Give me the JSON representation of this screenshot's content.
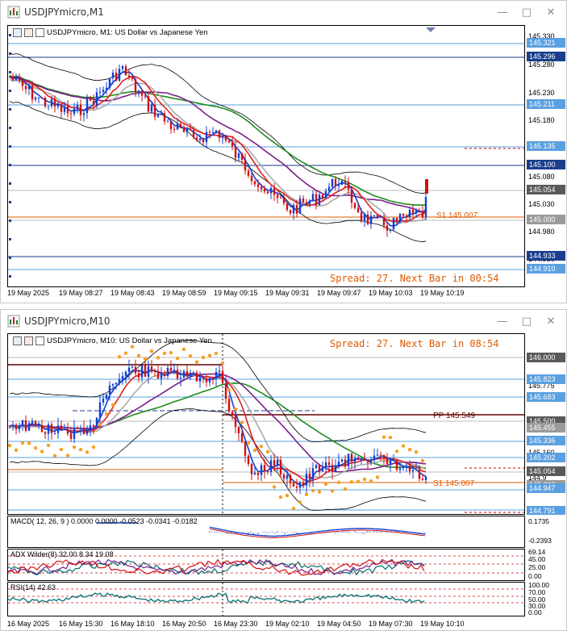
{
  "window1": {
    "title": "USDJPYmicro,M1",
    "chart_label": "USDJPYmicro, M1:  US Dollar vs Japanese Yen",
    "spread_text": "Spread: 27. Next Bar in 00:54",
    "s1_label": "S1 145.007",
    "price_ticks": [
      "145.330",
      "145.280",
      "145.230",
      "145.180",
      "145.130",
      "145.080",
      "145.030",
      "144.980",
      "144.930"
    ],
    "price_boxes": [
      {
        "text": "145.321",
        "color": "#5aa0e0"
      },
      {
        "text": "145.296",
        "color": "#1a3e8c"
      },
      {
        "text": "145.211",
        "color": "#5aa0e0"
      },
      {
        "text": "145.135",
        "color": "#5aa0e0"
      },
      {
        "text": "145.100",
        "color": "#1a3e8c"
      },
      {
        "text": "145.054",
        "color": "#5a5a5a"
      },
      {
        "text": "145.000",
        "color": "#9a9a9a"
      },
      {
        "text": "144.933",
        "color": "#1a3e8c"
      },
      {
        "text": "144.910",
        "color": "#5aa0e0"
      }
    ],
    "time_labels": [
      "19 May 2025",
      "19 May 08:27",
      "19 May 08:43",
      "19 May 08:59",
      "19 May 09:15",
      "19 May 09:31",
      "19 May 09:47",
      "19 May 10:03",
      "19 May 10:19"
    ]
  },
  "window2": {
    "title": "USDJPYmicro,M10",
    "chart_label": "USDJPYmicro, M10:  US Dollar vs Japanese Yen",
    "spread_text": "Spread: 27. Next Bar in 08:54",
    "pp_label": "PP 145.549",
    "s1_label": "S1 145.007",
    "price_boxes": [
      {
        "text": "146.000",
        "color": "#5a5a5a"
      },
      {
        "text": "145.823",
        "color": "#5aa0e0"
      },
      {
        "text": "145.683",
        "color": "#5aa0e0"
      },
      {
        "text": "145.500",
        "color": "#5a5a5a"
      },
      {
        "text": "145.455",
        "color": "#9a9a9a"
      },
      {
        "text": "145.336",
        "color": "#5aa0e0"
      },
      {
        "text": "145.202",
        "color": "#5aa0e0"
      },
      {
        "text": "145.054",
        "color": "#5a5a5a"
      },
      {
        "text": "145.000",
        "color": "#9a9a9a"
      },
      {
        "text": "144.947",
        "color": "#5aa0e0"
      },
      {
        "text": "144.791",
        "color": "#5aa0e0"
      }
    ],
    "price_ticks": [
      "145.775",
      "145.160",
      "144.9"
    ],
    "macd_label": "MACD( 12, 26, 9 ) 0.0000  0.0000  -0.0523  -0.0341  -0.0182",
    "macd_ticks": [
      "0.1735",
      "-0.2393"
    ],
    "adx_label": "ADX Wilder(8) 32.00  8.34  19.08",
    "adx_ticks": [
      "69.14",
      "45.00",
      "25.00",
      "0.00"
    ],
    "rsi_label": "RSI(14) 42.63",
    "rsi_ticks": [
      "100.00",
      "70.00",
      "50.00",
      "30.00",
      "0.00"
    ],
    "time_labels": [
      "16 May 2025",
      "16 May 15:30",
      "16 May 18:10",
      "16 May 20:50",
      "16 May 23:30",
      "19 May 02:10",
      "19 May 04:50",
      "19 May 07:30",
      "19 May 10:10"
    ]
  }
}
